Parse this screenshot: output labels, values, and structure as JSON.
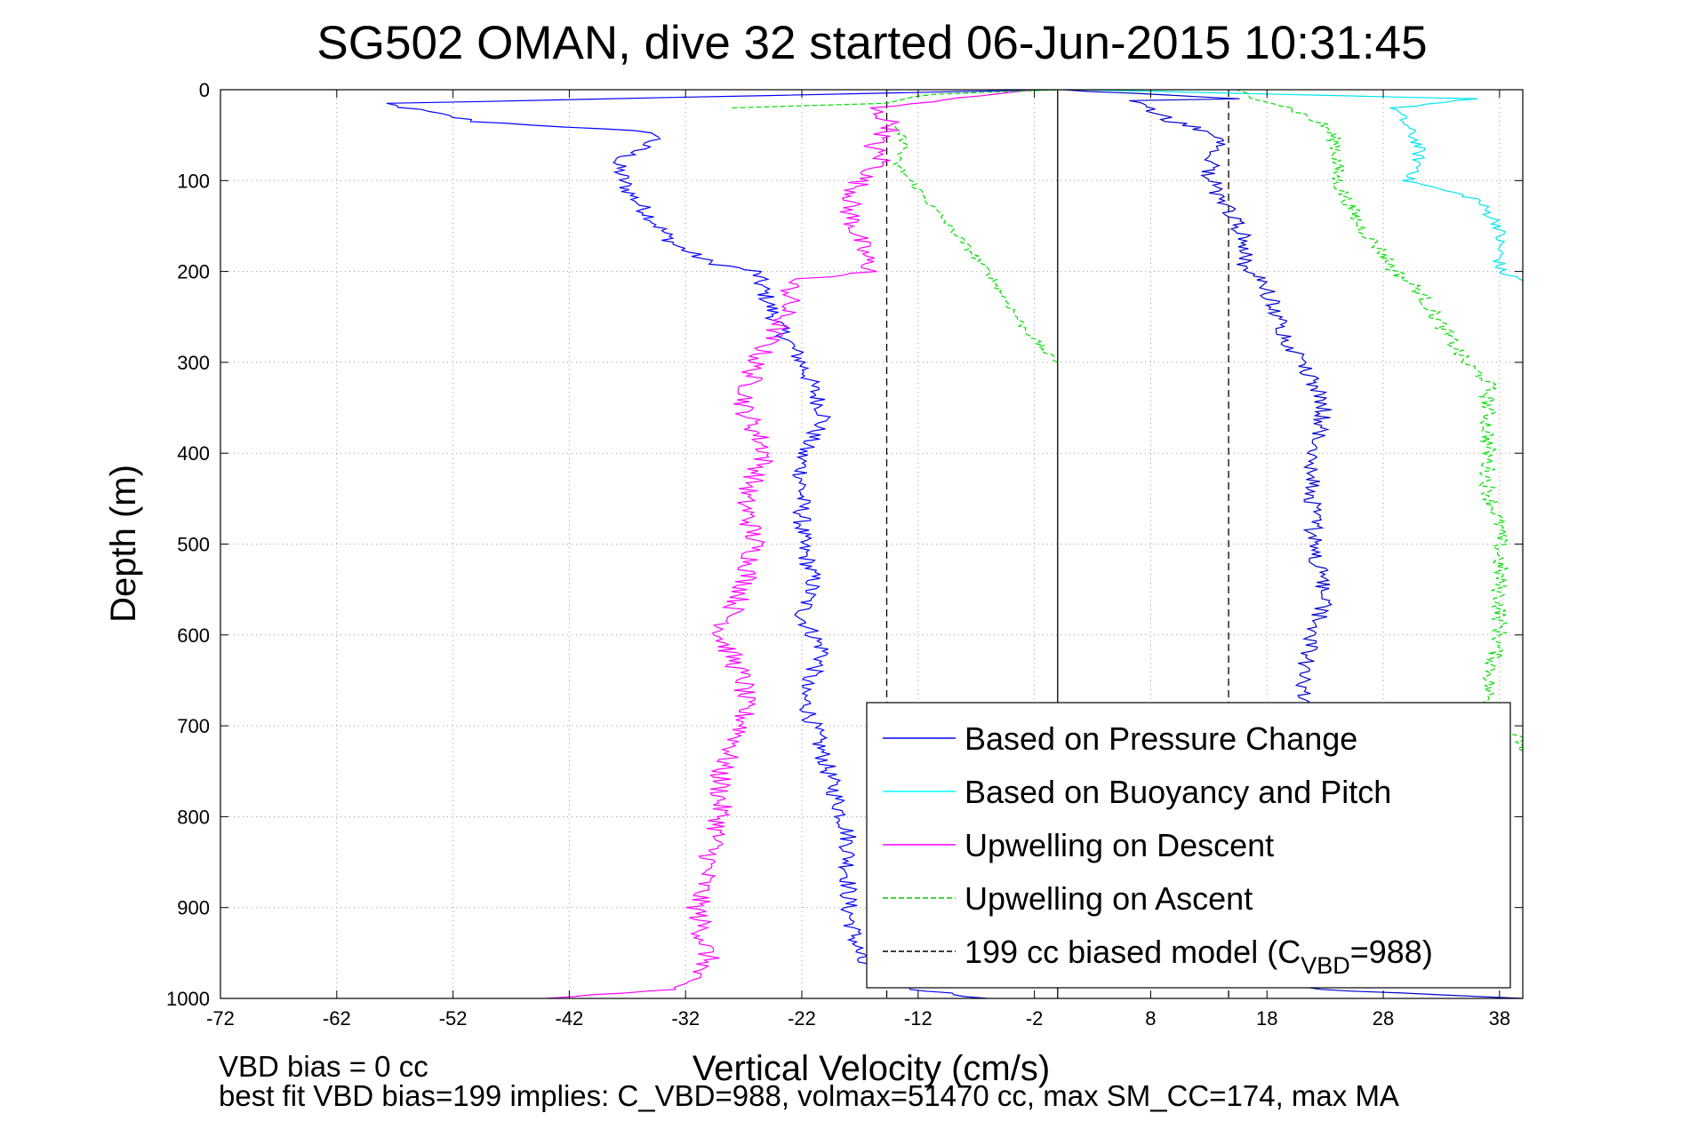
{
  "chart_data": {
    "type": "line",
    "title": "SG502 OMAN, dive 32 started 06-Jun-2015 10:31:45",
    "xlabel": "Vertical Velocity (cm/s)",
    "ylabel": "Depth (m)",
    "xlim": [
      -72,
      40
    ],
    "ylim": [
      0,
      1000
    ],
    "y_reversed": true,
    "grid": "dotted",
    "x_ticks": [
      "-72",
      "-62",
      "-52",
      "-42",
      "-32",
      "-22",
      "-12",
      "-2",
      "8",
      "18",
      "28",
      "38"
    ],
    "y_ticks": [
      "0",
      "100",
      "200",
      "300",
      "400",
      "500",
      "600",
      "700",
      "800",
      "900",
      "1000"
    ],
    "legend_position": "bottom-right",
    "reference_lines": [
      {
        "x": 0,
        "style": "solid",
        "color": "#000000"
      },
      {
        "x": -14.7,
        "style": "dashed",
        "color": "#000000"
      },
      {
        "x": 14.7,
        "style": "dashed",
        "color": "#000000"
      }
    ],
    "series": [
      {
        "name": "Based on Pressure Change",
        "color": "#0000ff",
        "style": "solid",
        "noise": 0.8,
        "points": [
          [
            -0.5,
            0
          ],
          [
            -58,
            15
          ],
          [
            -50,
            35
          ],
          [
            -37,
            45
          ],
          [
            -34,
            50
          ],
          [
            -36,
            65
          ],
          [
            -38,
            80
          ],
          [
            -37,
            110
          ],
          [
            -35,
            140
          ],
          [
            -33,
            170
          ],
          [
            -30,
            190
          ],
          [
            -26,
            200
          ],
          [
            -25,
            230
          ],
          [
            -24,
            260
          ],
          [
            -22,
            300
          ],
          [
            -21,
            330
          ],
          [
            -20,
            360
          ],
          [
            -22,
            400
          ],
          [
            -22,
            450
          ],
          [
            -22,
            500
          ],
          [
            -21,
            540
          ],
          [
            -22,
            580
          ],
          [
            -20,
            620
          ],
          [
            -22,
            660
          ],
          [
            -21,
            700
          ],
          [
            -20,
            740
          ],
          [
            -19,
            780
          ],
          [
            -18,
            820
          ],
          [
            -18,
            860
          ],
          [
            -18,
            900
          ],
          [
            -17,
            960
          ],
          [
            -12,
            990
          ],
          [
            -6,
            1000
          ]
        ]
      },
      {
        "name": "Based on Pressure Change (ascent)",
        "color": "#0000cc",
        "style": "solid",
        "noise": 0.8,
        "points": [
          [
            40,
            1000
          ],
          [
            22,
            990
          ],
          [
            21,
            960
          ],
          [
            21,
            700
          ],
          [
            21,
            640
          ],
          [
            22,
            600
          ],
          [
            23,
            560
          ],
          [
            22,
            500
          ],
          [
            22,
            440
          ],
          [
            22,
            400
          ],
          [
            23,
            350
          ],
          [
            22,
            320
          ],
          [
            20,
            280
          ],
          [
            19,
            250
          ],
          [
            18,
            220
          ],
          [
            16,
            190
          ],
          [
            16,
            160
          ],
          [
            15,
            140
          ],
          [
            14,
            120
          ],
          [
            13,
            90
          ],
          [
            14,
            60
          ],
          [
            14,
            50
          ],
          [
            10,
            35
          ],
          [
            6,
            12
          ],
          [
            15,
            10
          ],
          [
            0.5,
            0
          ]
        ]
      },
      {
        "name": "Based on Buoyancy and Pitch",
        "color": "#00e5ee",
        "style": "solid",
        "noise": 0.6,
        "points": [
          [
            2,
            0
          ],
          [
            36,
            10
          ],
          [
            29,
            20
          ],
          [
            30,
            40
          ],
          [
            31,
            60
          ],
          [
            31,
            90
          ],
          [
            30,
            100
          ],
          [
            36,
            120
          ],
          [
            38,
            150
          ],
          [
            38,
            180
          ],
          [
            38,
            200
          ],
          [
            40,
            210
          ]
        ]
      },
      {
        "name": "Upwelling on Descent",
        "color": "#ff00ff",
        "style": "solid",
        "noise": 1.0,
        "points": [
          [
            -2,
            0
          ],
          [
            -16,
            20
          ],
          [
            -14,
            40
          ],
          [
            -16,
            60
          ],
          [
            -15,
            80
          ],
          [
            -17,
            100
          ],
          [
            -18,
            130
          ],
          [
            -17,
            170
          ],
          [
            -16,
            200
          ],
          [
            -23,
            210
          ],
          [
            -23,
            230
          ],
          [
            -24,
            260
          ],
          [
            -26,
            300
          ],
          [
            -27,
            350
          ],
          [
            -25,
            400
          ],
          [
            -27,
            450
          ],
          [
            -26,
            500
          ],
          [
            -27,
            550
          ],
          [
            -29,
            600
          ],
          [
            -27,
            650
          ],
          [
            -27,
            700
          ],
          [
            -29,
            750
          ],
          [
            -29,
            800
          ],
          [
            -30,
            850
          ],
          [
            -31,
            900
          ],
          [
            -30,
            960
          ],
          [
            -33,
            990
          ],
          [
            -44,
            1000
          ]
        ]
      },
      {
        "name": "Upwelling on Ascent",
        "color": "#00dd00",
        "style": "dashed",
        "noise": 0.7,
        "points": [
          [
            -28,
            20
          ],
          [
            -15,
            15
          ],
          [
            -13,
            10
          ],
          [
            -11,
            5
          ],
          [
            0,
            0
          ],
          [
            15,
            0
          ],
          [
            20,
            20
          ],
          [
            23,
            40
          ],
          [
            24,
            60
          ],
          [
            24,
            100
          ],
          [
            26,
            150
          ],
          [
            28,
            180
          ],
          [
            29,
            200
          ],
          [
            31,
            220
          ],
          [
            33,
            260
          ],
          [
            35,
            300
          ],
          [
            37,
            320
          ],
          [
            37,
            360
          ],
          [
            37,
            400
          ],
          [
            37,
            440
          ],
          [
            38,
            480
          ],
          [
            38,
            520
          ],
          [
            38,
            560
          ],
          [
            38,
            600
          ],
          [
            37,
            660
          ],
          [
            37,
            680
          ],
          [
            40,
            720
          ],
          [
            40,
            740
          ]
        ]
      },
      {
        "name": "Upwelling on Ascent (descent limb)",
        "color": "#00dd00",
        "style": "dashed",
        "noise": 0.4,
        "points": [
          [
            -14,
            40
          ],
          [
            -13,
            60
          ],
          [
            -14,
            80
          ],
          [
            -12,
            110
          ],
          [
            -10,
            140
          ],
          [
            -8,
            170
          ],
          [
            -6,
            200
          ],
          [
            -4,
            240
          ],
          [
            -3,
            260
          ],
          [
            -1,
            290
          ],
          [
            0,
            300
          ]
        ]
      }
    ],
    "legend": [
      {
        "label": "Based on Pressure Change",
        "color": "#0000ff",
        "style": "solid"
      },
      {
        "label": "Based on Buoyancy and Pitch",
        "color": "#00ffff",
        "style": "solid"
      },
      {
        "label": "Upwelling on Descent",
        "color": "#ff00ff",
        "style": "solid"
      },
      {
        "label": "Upwelling on Ascent",
        "color": "#00cc00",
        "style": "dashed"
      },
      {
        "label_main": "199 cc biased model (C",
        "label_sub": "VBD",
        "label_tail": "=988)",
        "color": "#000000",
        "style": "dashed"
      }
    ],
    "notes": [
      "VBD bias = 0 cc",
      "best fit VBD bias=199 implies: C_VBD=988, volmax=51470 cc, max SM_CC=174, max MA"
    ]
  }
}
